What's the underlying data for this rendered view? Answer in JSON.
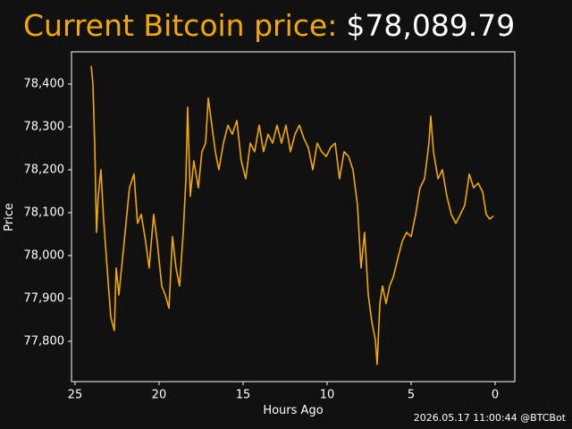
{
  "chart_data": {
    "type": "line",
    "title": "Current Bitcoin price:",
    "subtitle": "$78,089.79",
    "x_label": "Hours Ago",
    "y_label": "Price",
    "footer": "2026.05.17 11:00:44 @BTCBot",
    "xlim": [
      25.21,
      -1.17
    ],
    "ylim": [
      77706,
      78475
    ],
    "xticks": [
      25,
      20,
      15,
      10,
      5,
      0
    ],
    "yticks": [
      {
        "value": 77800,
        "label": "77,800"
      },
      {
        "value": 77900,
        "label": "77,900"
      },
      {
        "value": 78000,
        "label": "78,000"
      },
      {
        "value": 78100,
        "label": "78,100"
      },
      {
        "value": 78200,
        "label": "78,200"
      },
      {
        "value": 78300,
        "label": "78,300"
      },
      {
        "value": 78400,
        "label": "78,400"
      }
    ],
    "grid": false,
    "series": [
      {
        "color": "#f2a900",
        "x": [
          24.04,
          23.94,
          23.83,
          23.72,
          23.62,
          23.46,
          23.3,
          23.09,
          22.87,
          22.66,
          22.55,
          22.39,
          22.23,
          22.02,
          21.76,
          21.49,
          21.28,
          21.06,
          20.8,
          20.59,
          20.32,
          20.11,
          19.84,
          19.63,
          19.41,
          19.2,
          18.99,
          18.78,
          18.56,
          18.4,
          18.3,
          18.14,
          17.93,
          17.66,
          17.45,
          17.23,
          17.07,
          16.86,
          16.65,
          16.44,
          16.17,
          15.9,
          15.64,
          15.37,
          15.11,
          14.84,
          14.57,
          14.31,
          14.04,
          13.78,
          13.51,
          13.24,
          12.98,
          12.71,
          12.45,
          12.18,
          11.91,
          11.65,
          11.38,
          11.12,
          10.85,
          10.59,
          10.32,
          10.05,
          9.79,
          9.52,
          9.26,
          8.99,
          8.72,
          8.46,
          8.19,
          7.98,
          7.77,
          7.55,
          7.34,
          7.13,
          7.02,
          6.86,
          6.7,
          6.49,
          6.28,
          6.06,
          5.8,
          5.53,
          5.27,
          5.0,
          4.73,
          4.47,
          4.2,
          3.94,
          3.83,
          3.67,
          3.4,
          3.14,
          2.87,
          2.61,
          2.34,
          2.07,
          1.81,
          1.54,
          1.28,
          1.01,
          0.74,
          0.53,
          0.32,
          0.11
        ],
        "values": [
          78442,
          78404,
          78262,
          78054,
          78138,
          78200,
          78085,
          77971,
          77856,
          77825,
          77971,
          77908,
          77971,
          78054,
          78158,
          78190,
          78075,
          78096,
          78033,
          77971,
          78096,
          78033,
          77929,
          77908,
          77877,
          78044,
          77971,
          77929,
          78054,
          78179,
          78346,
          78138,
          78221,
          78158,
          78242,
          78262,
          78367,
          78304,
          78242,
          78200,
          78262,
          78304,
          78283,
          78315,
          78221,
          78179,
          78262,
          78242,
          78304,
          78242,
          78283,
          78262,
          78304,
          78262,
          78304,
          78242,
          78283,
          78304,
          78273,
          78252,
          78200,
          78262,
          78242,
          78231,
          78252,
          78262,
          78179,
          78242,
          78231,
          78200,
          78117,
          77971,
          78054,
          77908,
          77846,
          77804,
          77746,
          77888,
          77929,
          77888,
          77929,
          77950,
          77992,
          78033,
          78054,
          78044,
          78096,
          78158,
          78179,
          78262,
          78325,
          78242,
          78179,
          78200,
          78138,
          78096,
          78075,
          78096,
          78117,
          78190,
          78158,
          78169,
          78148,
          78096,
          78085,
          78092
        ]
      }
    ]
  }
}
